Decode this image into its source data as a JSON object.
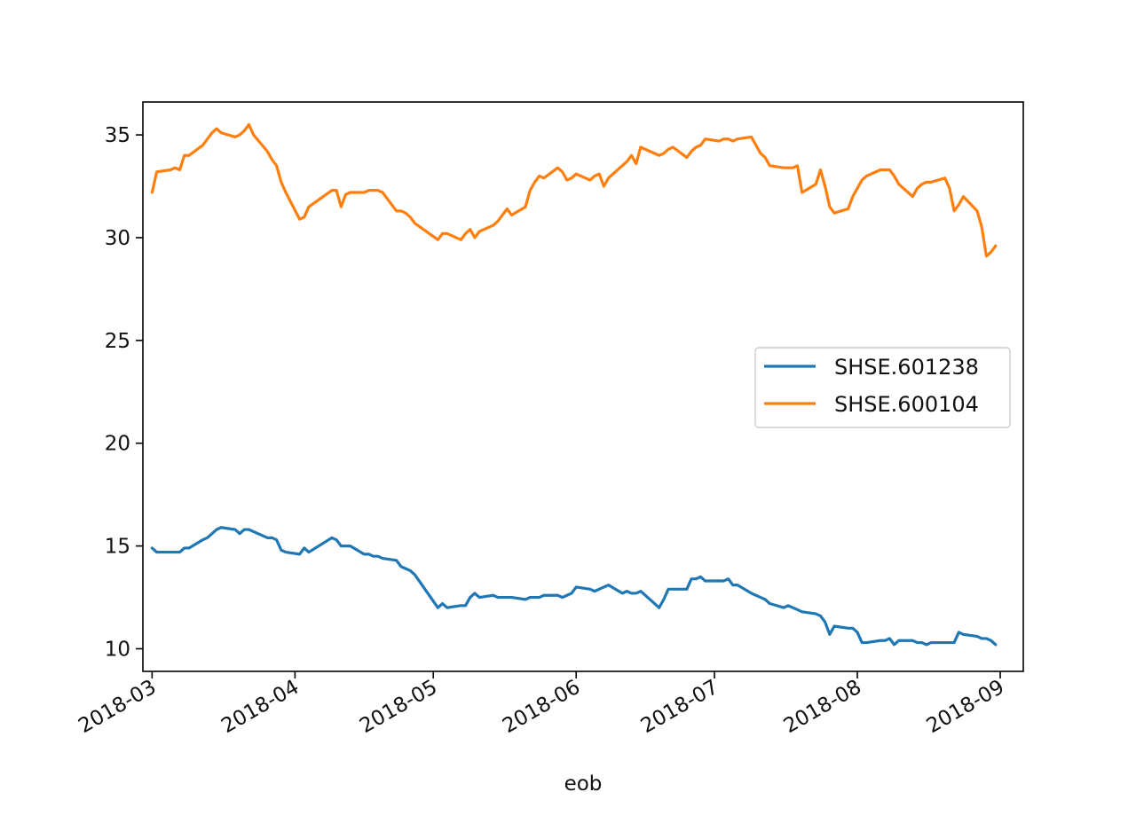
{
  "chart_data": {
    "type": "line",
    "title": "",
    "xlabel": "eob",
    "ylabel": "",
    "x_ticks": [
      "2018-03",
      "2018-04",
      "2018-05",
      "2018-06",
      "2018-07",
      "2018-08",
      "2018-09"
    ],
    "y_ticks": [
      "10",
      "15",
      "20",
      "25",
      "30",
      "35"
    ],
    "xlim": [
      "2018-02-27",
      "2018-09-06"
    ],
    "ylim": [
      8.9,
      36.6
    ],
    "grid": false,
    "legend": {
      "position": "center-right"
    },
    "series": [
      {
        "name": "SHSE.601238",
        "color": "#1f77b4",
        "points": [
          [
            "2018-03-01",
            14.9
          ],
          [
            "2018-03-02",
            14.7
          ],
          [
            "2018-03-05",
            14.7
          ],
          [
            "2018-03-06",
            14.7
          ],
          [
            "2018-03-07",
            14.7
          ],
          [
            "2018-03-08",
            14.9
          ],
          [
            "2018-03-09",
            14.9
          ],
          [
            "2018-03-12",
            15.3
          ],
          [
            "2018-03-13",
            15.4
          ],
          [
            "2018-03-14",
            15.6
          ],
          [
            "2018-03-15",
            15.8
          ],
          [
            "2018-03-16",
            15.9
          ],
          [
            "2018-03-19",
            15.8
          ],
          [
            "2018-03-20",
            15.6
          ],
          [
            "2018-03-21",
            15.8
          ],
          [
            "2018-03-22",
            15.8
          ],
          [
            "2018-03-23",
            15.7
          ],
          [
            "2018-03-26",
            15.4
          ],
          [
            "2018-03-27",
            15.4
          ],
          [
            "2018-03-28",
            15.3
          ],
          [
            "2018-03-29",
            14.8
          ],
          [
            "2018-03-30",
            14.7
          ],
          [
            "2018-04-02",
            14.6
          ],
          [
            "2018-04-03",
            14.9
          ],
          [
            "2018-04-04",
            14.7
          ],
          [
            "2018-04-09",
            15.4
          ],
          [
            "2018-04-10",
            15.3
          ],
          [
            "2018-04-11",
            15.0
          ],
          [
            "2018-04-12",
            15.0
          ],
          [
            "2018-04-13",
            15.0
          ],
          [
            "2018-04-16",
            14.6
          ],
          [
            "2018-04-17",
            14.6
          ],
          [
            "2018-04-18",
            14.5
          ],
          [
            "2018-04-19",
            14.5
          ],
          [
            "2018-04-20",
            14.4
          ],
          [
            "2018-04-23",
            14.3
          ],
          [
            "2018-04-24",
            14.0
          ],
          [
            "2018-04-25",
            13.9
          ],
          [
            "2018-04-26",
            13.8
          ],
          [
            "2018-04-27",
            13.6
          ],
          [
            "2018-05-02",
            12.0
          ],
          [
            "2018-05-03",
            12.2
          ],
          [
            "2018-05-04",
            12.0
          ],
          [
            "2018-05-07",
            12.1
          ],
          [
            "2018-05-08",
            12.1
          ],
          [
            "2018-05-09",
            12.5
          ],
          [
            "2018-05-10",
            12.7
          ],
          [
            "2018-05-11",
            12.5
          ],
          [
            "2018-05-14",
            12.6
          ],
          [
            "2018-05-15",
            12.5
          ],
          [
            "2018-05-16",
            12.5
          ],
          [
            "2018-05-17",
            12.5
          ],
          [
            "2018-05-18",
            12.5
          ],
          [
            "2018-05-21",
            12.4
          ],
          [
            "2018-05-22",
            12.5
          ],
          [
            "2018-05-23",
            12.5
          ],
          [
            "2018-05-24",
            12.5
          ],
          [
            "2018-05-25",
            12.6
          ],
          [
            "2018-05-28",
            12.6
          ],
          [
            "2018-05-29",
            12.5
          ],
          [
            "2018-05-30",
            12.6
          ],
          [
            "2018-05-31",
            12.7
          ],
          [
            "2018-06-01",
            13.0
          ],
          [
            "2018-06-04",
            12.9
          ],
          [
            "2018-06-05",
            12.8
          ],
          [
            "2018-06-06",
            12.9
          ],
          [
            "2018-06-07",
            13.0
          ],
          [
            "2018-06-08",
            13.1
          ],
          [
            "2018-06-11",
            12.7
          ],
          [
            "2018-06-12",
            12.8
          ],
          [
            "2018-06-13",
            12.7
          ],
          [
            "2018-06-14",
            12.7
          ],
          [
            "2018-06-15",
            12.8
          ],
          [
            "2018-06-19",
            12.0
          ],
          [
            "2018-06-20",
            12.4
          ],
          [
            "2018-06-21",
            12.9
          ],
          [
            "2018-06-22",
            12.9
          ],
          [
            "2018-06-25",
            12.9
          ],
          [
            "2018-06-26",
            13.4
          ],
          [
            "2018-06-27",
            13.4
          ],
          [
            "2018-06-28",
            13.5
          ],
          [
            "2018-06-29",
            13.3
          ],
          [
            "2018-07-02",
            13.3
          ],
          [
            "2018-07-03",
            13.3
          ],
          [
            "2018-07-04",
            13.4
          ],
          [
            "2018-07-05",
            13.1
          ],
          [
            "2018-07-06",
            13.1
          ],
          [
            "2018-07-09",
            12.7
          ],
          [
            "2018-07-10",
            12.6
          ],
          [
            "2018-07-11",
            12.5
          ],
          [
            "2018-07-12",
            12.4
          ],
          [
            "2018-07-13",
            12.2
          ],
          [
            "2018-07-16",
            12.0
          ],
          [
            "2018-07-17",
            12.1
          ],
          [
            "2018-07-18",
            12.0
          ],
          [
            "2018-07-19",
            11.9
          ],
          [
            "2018-07-20",
            11.8
          ],
          [
            "2018-07-23",
            11.7
          ],
          [
            "2018-07-24",
            11.6
          ],
          [
            "2018-07-25",
            11.3
          ],
          [
            "2018-07-26",
            10.7
          ],
          [
            "2018-07-27",
            11.1
          ],
          [
            "2018-07-30",
            11.0
          ],
          [
            "2018-07-31",
            11.0
          ],
          [
            "2018-08-01",
            10.8
          ],
          [
            "2018-08-02",
            10.3
          ],
          [
            "2018-08-03",
            10.3
          ],
          [
            "2018-08-06",
            10.4
          ],
          [
            "2018-08-07",
            10.4
          ],
          [
            "2018-08-08",
            10.5
          ],
          [
            "2018-08-09",
            10.2
          ],
          [
            "2018-08-10",
            10.4
          ],
          [
            "2018-08-13",
            10.4
          ],
          [
            "2018-08-14",
            10.3
          ],
          [
            "2018-08-15",
            10.3
          ],
          [
            "2018-08-16",
            10.2
          ],
          [
            "2018-08-17",
            10.3
          ],
          [
            "2018-08-20",
            10.3
          ],
          [
            "2018-08-21",
            10.3
          ],
          [
            "2018-08-22",
            10.3
          ],
          [
            "2018-08-23",
            10.8
          ],
          [
            "2018-08-24",
            10.7
          ],
          [
            "2018-08-27",
            10.6
          ],
          [
            "2018-08-28",
            10.5
          ],
          [
            "2018-08-29",
            10.5
          ],
          [
            "2018-08-30",
            10.4
          ],
          [
            "2018-08-31",
            10.2
          ]
        ]
      },
      {
        "name": "SHSE.600104",
        "color": "#ff7f0e",
        "points": [
          [
            "2018-03-01",
            32.2
          ],
          [
            "2018-03-02",
            33.2
          ],
          [
            "2018-03-05",
            33.3
          ],
          [
            "2018-03-06",
            33.4
          ],
          [
            "2018-03-07",
            33.3
          ],
          [
            "2018-03-08",
            34.0
          ],
          [
            "2018-03-09",
            34.0
          ],
          [
            "2018-03-12",
            34.5
          ],
          [
            "2018-03-13",
            34.8
          ],
          [
            "2018-03-14",
            35.1
          ],
          [
            "2018-03-15",
            35.3
          ],
          [
            "2018-03-16",
            35.1
          ],
          [
            "2018-03-19",
            34.9
          ],
          [
            "2018-03-20",
            35.0
          ],
          [
            "2018-03-21",
            35.2
          ],
          [
            "2018-03-22",
            35.5
          ],
          [
            "2018-03-23",
            35.0
          ],
          [
            "2018-03-26",
            34.2
          ],
          [
            "2018-03-27",
            33.8
          ],
          [
            "2018-03-28",
            33.5
          ],
          [
            "2018-03-29",
            32.7
          ],
          [
            "2018-03-30",
            32.2
          ],
          [
            "2018-04-02",
            30.9
          ],
          [
            "2018-04-03",
            31.0
          ],
          [
            "2018-04-04",
            31.5
          ],
          [
            "2018-04-09",
            32.3
          ],
          [
            "2018-04-10",
            32.3
          ],
          [
            "2018-04-11",
            31.5
          ],
          [
            "2018-04-12",
            32.1
          ],
          [
            "2018-04-13",
            32.2
          ],
          [
            "2018-04-16",
            32.2
          ],
          [
            "2018-04-17",
            32.3
          ],
          [
            "2018-04-18",
            32.3
          ],
          [
            "2018-04-19",
            32.3
          ],
          [
            "2018-04-20",
            32.2
          ],
          [
            "2018-04-23",
            31.3
          ],
          [
            "2018-04-24",
            31.3
          ],
          [
            "2018-04-25",
            31.2
          ],
          [
            "2018-04-26",
            31.0
          ],
          [
            "2018-04-27",
            30.7
          ],
          [
            "2018-05-02",
            29.9
          ],
          [
            "2018-05-03",
            30.2
          ],
          [
            "2018-05-04",
            30.2
          ],
          [
            "2018-05-07",
            29.9
          ],
          [
            "2018-05-08",
            30.2
          ],
          [
            "2018-05-09",
            30.4
          ],
          [
            "2018-05-10",
            30.0
          ],
          [
            "2018-05-11",
            30.3
          ],
          [
            "2018-05-14",
            30.6
          ],
          [
            "2018-05-15",
            30.8
          ],
          [
            "2018-05-16",
            31.1
          ],
          [
            "2018-05-17",
            31.4
          ],
          [
            "2018-05-18",
            31.1
          ],
          [
            "2018-05-21",
            31.5
          ],
          [
            "2018-05-22",
            32.3
          ],
          [
            "2018-05-23",
            32.7
          ],
          [
            "2018-05-24",
            33.0
          ],
          [
            "2018-05-25",
            32.9
          ],
          [
            "2018-05-28",
            33.4
          ],
          [
            "2018-05-29",
            33.2
          ],
          [
            "2018-05-30",
            32.8
          ],
          [
            "2018-05-31",
            32.9
          ],
          [
            "2018-06-01",
            33.1
          ],
          [
            "2018-06-04",
            32.8
          ],
          [
            "2018-06-05",
            33.0
          ],
          [
            "2018-06-06",
            33.1
          ],
          [
            "2018-06-07",
            32.5
          ],
          [
            "2018-06-08",
            32.9
          ],
          [
            "2018-06-11",
            33.5
          ],
          [
            "2018-06-12",
            33.7
          ],
          [
            "2018-06-13",
            34.0
          ],
          [
            "2018-06-14",
            33.6
          ],
          [
            "2018-06-15",
            34.4
          ],
          [
            "2018-06-19",
            34.0
          ],
          [
            "2018-06-20",
            34.1
          ],
          [
            "2018-06-21",
            34.3
          ],
          [
            "2018-06-22",
            34.4
          ],
          [
            "2018-06-25",
            33.9
          ],
          [
            "2018-06-26",
            34.2
          ],
          [
            "2018-06-27",
            34.4
          ],
          [
            "2018-06-28",
            34.5
          ],
          [
            "2018-06-29",
            34.8
          ],
          [
            "2018-07-02",
            34.7
          ],
          [
            "2018-07-03",
            34.8
          ],
          [
            "2018-07-04",
            34.8
          ],
          [
            "2018-07-05",
            34.7
          ],
          [
            "2018-07-06",
            34.8
          ],
          [
            "2018-07-09",
            34.9
          ],
          [
            "2018-07-10",
            34.5
          ],
          [
            "2018-07-11",
            34.1
          ],
          [
            "2018-07-12",
            33.9
          ],
          [
            "2018-07-13",
            33.5
          ],
          [
            "2018-07-16",
            33.4
          ],
          [
            "2018-07-17",
            33.4
          ],
          [
            "2018-07-18",
            33.4
          ],
          [
            "2018-07-19",
            33.5
          ],
          [
            "2018-07-20",
            32.2
          ],
          [
            "2018-07-23",
            32.6
          ],
          [
            "2018-07-24",
            33.3
          ],
          [
            "2018-07-25",
            32.5
          ],
          [
            "2018-07-26",
            31.5
          ],
          [
            "2018-07-27",
            31.2
          ],
          [
            "2018-07-30",
            31.4
          ],
          [
            "2018-07-31",
            32.0
          ],
          [
            "2018-08-01",
            32.4
          ],
          [
            "2018-08-02",
            32.8
          ],
          [
            "2018-08-03",
            33.0
          ],
          [
            "2018-08-06",
            33.3
          ],
          [
            "2018-08-07",
            33.3
          ],
          [
            "2018-08-08",
            33.3
          ],
          [
            "2018-08-09",
            33.0
          ],
          [
            "2018-08-10",
            32.6
          ],
          [
            "2018-08-13",
            32.0
          ],
          [
            "2018-08-14",
            32.4
          ],
          [
            "2018-08-15",
            32.6
          ],
          [
            "2018-08-16",
            32.7
          ],
          [
            "2018-08-17",
            32.7
          ],
          [
            "2018-08-20",
            32.9
          ],
          [
            "2018-08-21",
            32.4
          ],
          [
            "2018-08-22",
            31.3
          ],
          [
            "2018-08-23",
            31.6
          ],
          [
            "2018-08-24",
            32.0
          ],
          [
            "2018-08-27",
            31.3
          ],
          [
            "2018-08-28",
            30.5
          ],
          [
            "2018-08-29",
            29.1
          ],
          [
            "2018-08-30",
            29.3
          ],
          [
            "2018-08-31",
            29.6
          ]
        ]
      }
    ]
  }
}
